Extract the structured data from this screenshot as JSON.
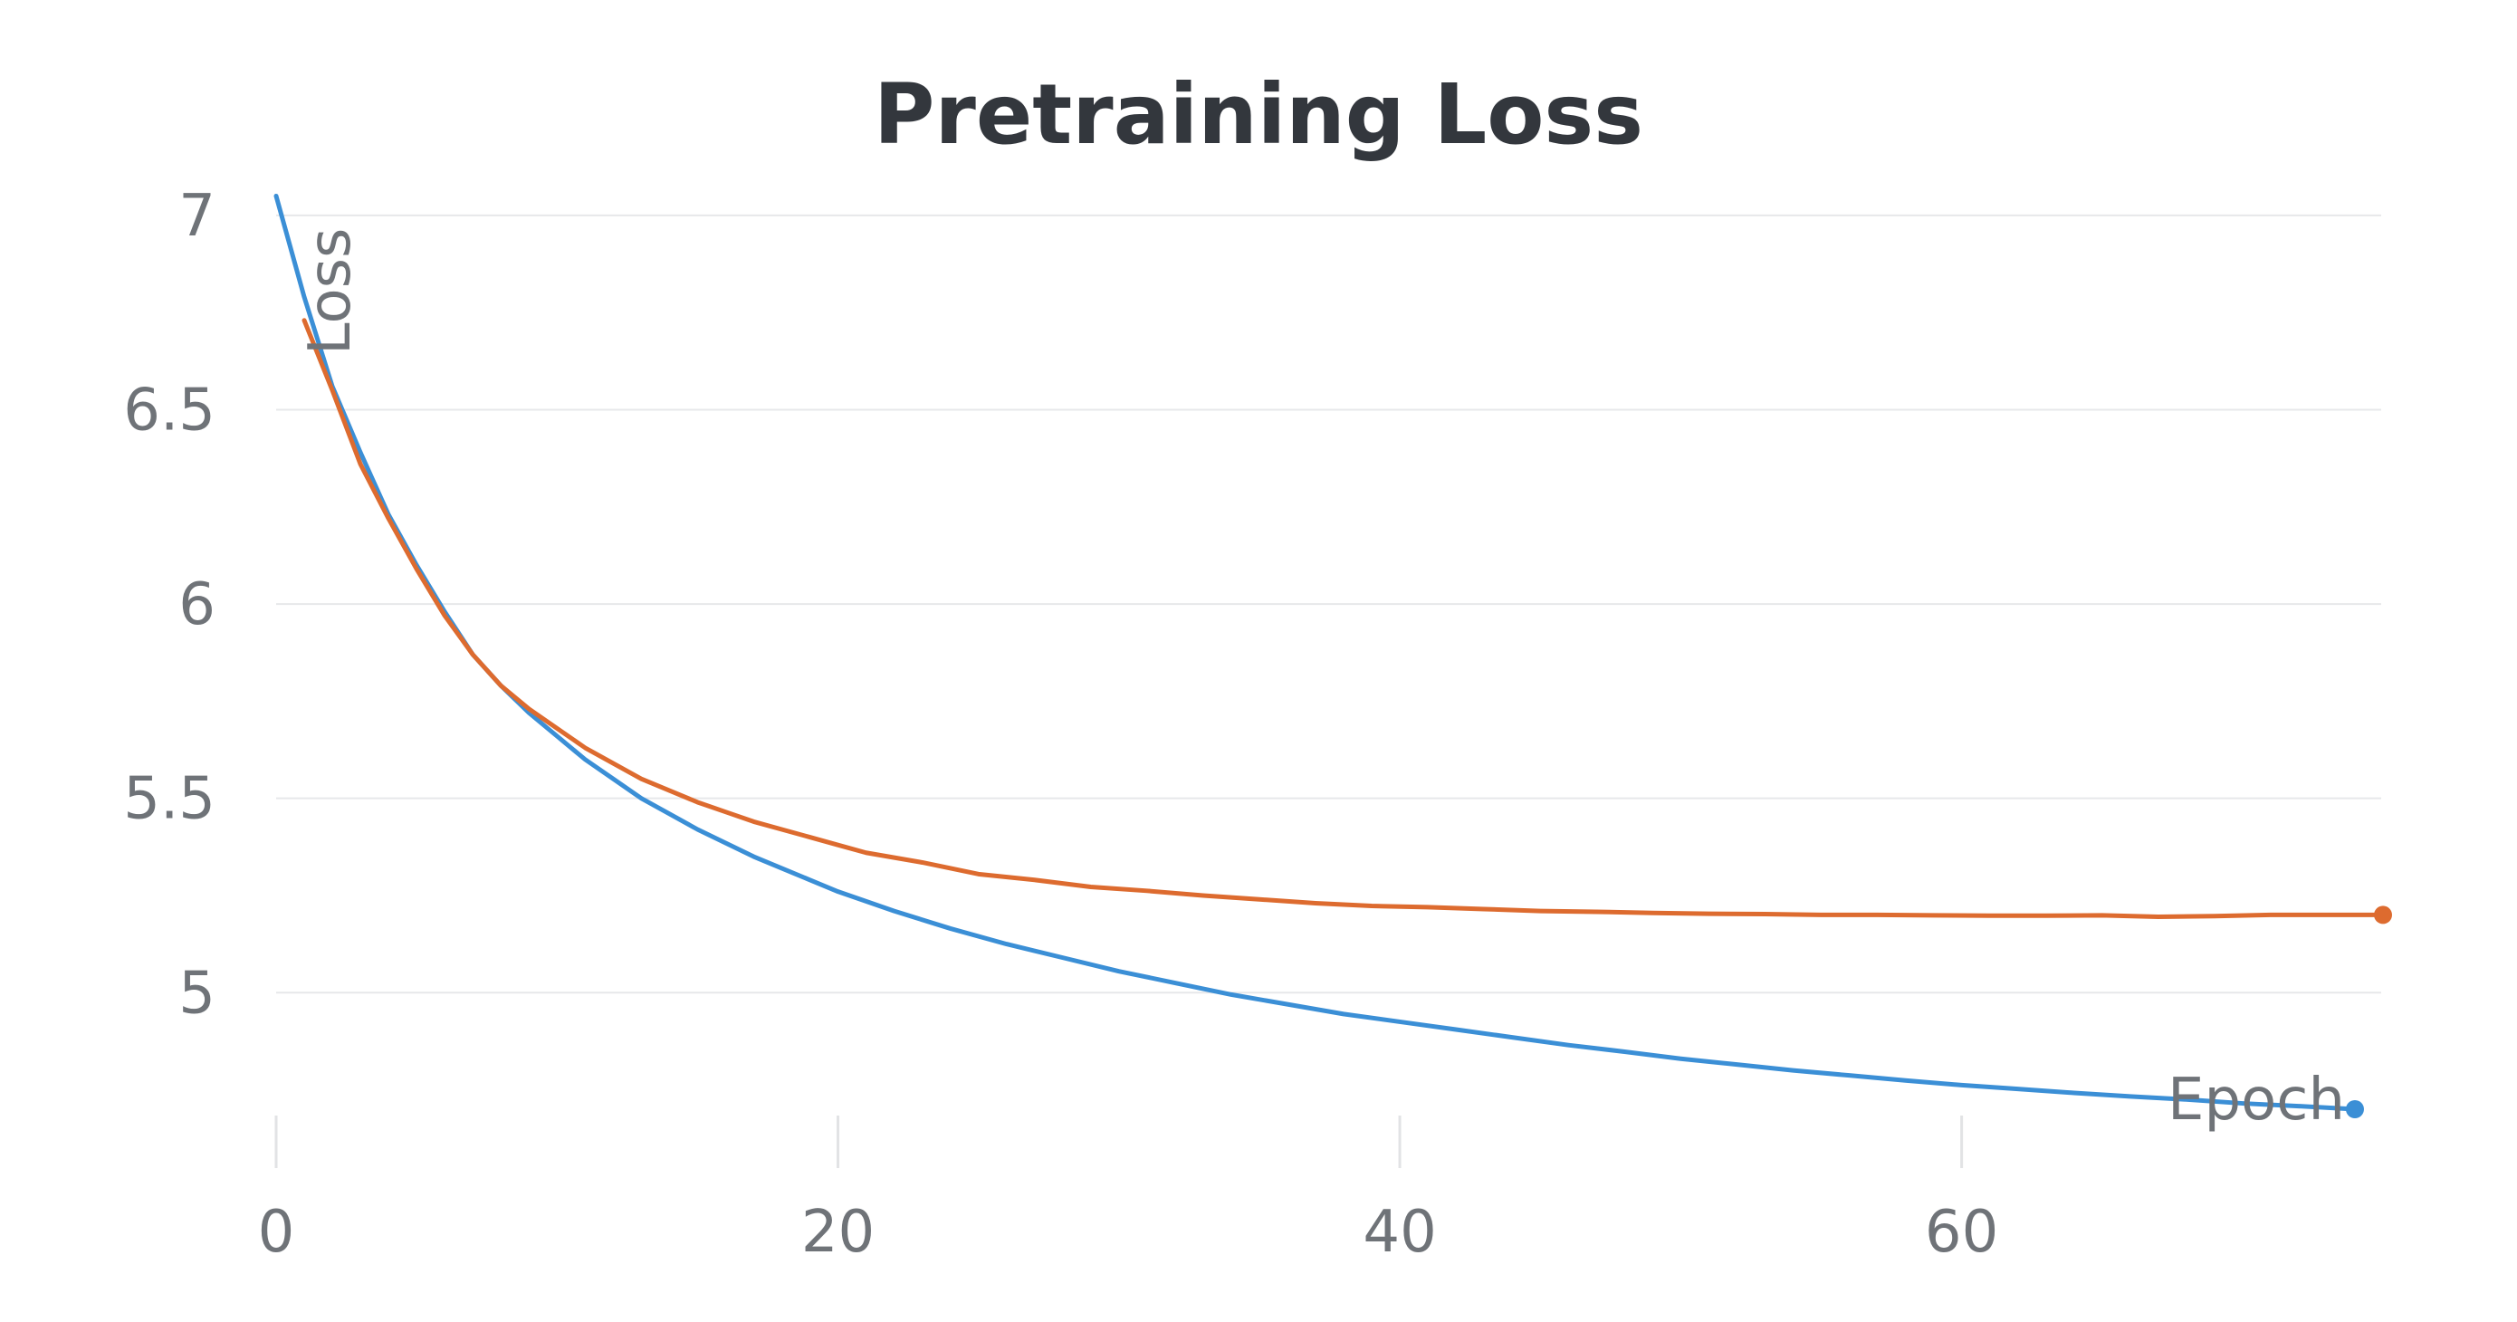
{
  "chart_data": {
    "type": "line",
    "title": "Pretraining Loss",
    "xlabel": "Epoch",
    "ylabel": "Loss",
    "xlim": [
      0,
      75
    ],
    "ylim": [
      4.7,
      7.1
    ],
    "x_ticks": [
      0,
      20,
      40,
      60
    ],
    "x_tick_labels": [
      "0",
      "20",
      "40",
      "60"
    ],
    "y_ticks": [
      5,
      5.5,
      6,
      6.5,
      7
    ],
    "y_tick_labels": [
      "5",
      "5.5",
      "6",
      "6.5",
      "7"
    ],
    "grid": true,
    "legend": "none",
    "series": [
      {
        "color": "#3b8fd6",
        "x": [
          0,
          1,
          2,
          3,
          4,
          5,
          6,
          7,
          8,
          9,
          10,
          11,
          12,
          13,
          14,
          15,
          16,
          17,
          18,
          19,
          20,
          22,
          24,
          26,
          28,
          30,
          32,
          34,
          36,
          38,
          40,
          42,
          44,
          46,
          48,
          50,
          52,
          54,
          56,
          58,
          60,
          62,
          64,
          66,
          68,
          70,
          72,
          74
        ],
        "y": [
          7.05,
          6.79,
          6.56,
          6.39,
          6.23,
          6.1,
          5.98,
          5.87,
          5.79,
          5.72,
          5.66,
          5.6,
          5.55,
          5.5,
          5.46,
          5.42,
          5.385,
          5.35,
          5.32,
          5.29,
          5.26,
          5.21,
          5.165,
          5.125,
          5.09,
          5.055,
          5.025,
          4.995,
          4.97,
          4.945,
          4.925,
          4.905,
          4.885,
          4.865,
          4.848,
          4.83,
          4.815,
          4.8,
          4.787,
          4.774,
          4.762,
          4.752,
          4.742,
          4.733,
          4.725,
          4.715,
          4.708,
          4.7
        ]
      },
      {
        "color": "#dd6b2f",
        "x": [
          1,
          2,
          3,
          4,
          5,
          6,
          7,
          8,
          9,
          10,
          11,
          12,
          13,
          14,
          15,
          16,
          17,
          18,
          19,
          20,
          21,
          23,
          25,
          27,
          29,
          31,
          33,
          35,
          37,
          39,
          41,
          43,
          45,
          47,
          49,
          51,
          53,
          55,
          57,
          59,
          61,
          63,
          65,
          67,
          69,
          71,
          73,
          75
        ],
        "y": [
          6.73,
          6.55,
          6.36,
          6.22,
          6.09,
          5.97,
          5.87,
          5.79,
          5.73,
          5.68,
          5.63,
          5.59,
          5.55,
          5.52,
          5.49,
          5.465,
          5.44,
          5.42,
          5.4,
          5.38,
          5.36,
          5.335,
          5.305,
          5.29,
          5.272,
          5.262,
          5.25,
          5.24,
          5.23,
          5.223,
          5.22,
          5.215,
          5.21,
          5.208,
          5.205,
          5.203,
          5.202,
          5.2,
          5.2,
          5.199,
          5.198,
          5.198,
          5.199,
          5.195,
          5.197,
          5.2,
          5.2,
          5.2
        ]
      }
    ]
  }
}
